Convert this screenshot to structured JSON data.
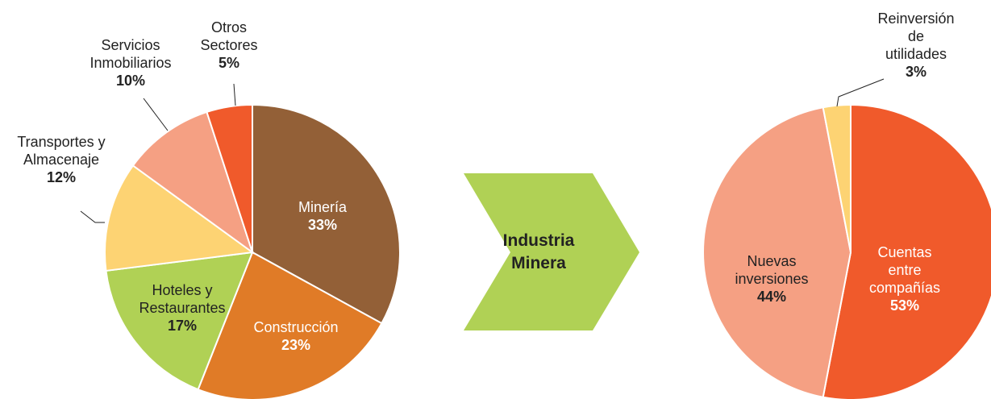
{
  "chart_data": [
    {
      "type": "pie",
      "categories": [
        "Minería",
        "Construcción",
        "Hoteles y\nRestaurantes",
        "Transportes y\nAlmacenaje",
        "Servicios\nInmobiliarios",
        "Otros\nSectores"
      ],
      "values": [
        33,
        23,
        17,
        12,
        10,
        5
      ],
      "value_labels": [
        "33%",
        "23%",
        "17%",
        "12%",
        "10%",
        "5%"
      ],
      "colors": [
        "#936037",
        "#e07b27",
        "#b0d155",
        "#fdd373",
        "#f5a083",
        "#f05a2b"
      ]
    },
    {
      "type": "pie",
      "categories": [
        "Cuentas entre\ncompañías",
        "Nuevas\ninversiones",
        "Reinversión\nde utilidades"
      ],
      "values": [
        53,
        44,
        3
      ],
      "value_labels": [
        "53%",
        "44%",
        "3%"
      ],
      "colors": [
        "#f05a2b",
        "#f5a083",
        "#fdd373"
      ]
    }
  ],
  "arrow": {
    "label": "Industria\nMinera"
  }
}
